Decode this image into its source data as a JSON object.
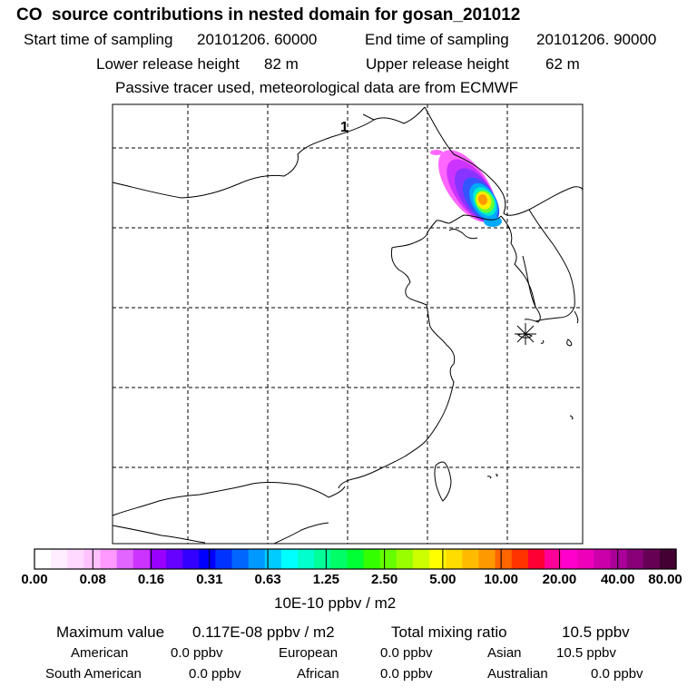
{
  "title": "CO  source contributions in nested domain for gosan_201012",
  "sampling": {
    "start_label": "Start time of sampling",
    "start_value": "20101206. 60000",
    "end_label": "End time of sampling",
    "end_value": "20101206. 90000"
  },
  "release": {
    "lower_label": "Lower release height",
    "lower_value": "82 m",
    "upper_label": "Upper release height",
    "upper_value": "62 m"
  },
  "tracer_note": "Passive tracer used, meteorological data are from ECMWF",
  "map": {
    "release_marker_label": "1",
    "receptor_symbol": "asterisk",
    "plume_colors": [
      "#ff66ff",
      "#cc33ff",
      "#8833ff",
      "#3355ff",
      "#00aaff",
      "#00eecc",
      "#66ff33",
      "#ffee00",
      "#ff9900"
    ]
  },
  "colorbar": {
    "colors": [
      "#ffffff",
      "#ffeeff",
      "#ffd9ff",
      "#ffc2ff",
      "#ff99ff",
      "#e066ff",
      "#cc33ff",
      "#9900ff",
      "#6600ff",
      "#3300ff",
      "#0000ff",
      "#0033ff",
      "#0066ff",
      "#0099ff",
      "#00ccff",
      "#00ffff",
      "#00ffcc",
      "#00ff99",
      "#00ff66",
      "#00ff33",
      "#33ff00",
      "#66ff00",
      "#99ff00",
      "#ccff00",
      "#ffff00",
      "#ffdd00",
      "#ffbb00",
      "#ff9900",
      "#ff6600",
      "#ff3300",
      "#ff0033",
      "#ff0099",
      "#ff00cc",
      "#ee00bb",
      "#cc00aa",
      "#aa0099",
      "#880077",
      "#660055",
      "#440033"
    ],
    "tick_labels": [
      "0.00",
      "0.08",
      "0.16",
      "0.31",
      "0.63",
      "1.25",
      "2.50",
      "5.00",
      "10.00",
      "20.00",
      "40.00",
      "80.00"
    ],
    "units": "10E-10 ppbv / m2"
  },
  "summary": {
    "max_label": "Maximum value",
    "max_value": "0.117E-08 ppbv / m2",
    "total_label": "Total mixing ratio",
    "total_value": "10.5 ppbv"
  },
  "regions": {
    "american_label": "American",
    "american_value": "0.0 ppbv",
    "european_label": "European",
    "european_value": "0.0 ppbv",
    "asian_label": "Asian",
    "asian_value": "10.5 ppbv",
    "south_american_label": "South American",
    "south_american_value": "0.0 ppbv",
    "african_label": "African",
    "african_value": "0.0 ppbv",
    "australian_label": "Australian",
    "australian_value": "0.0 ppbv"
  }
}
